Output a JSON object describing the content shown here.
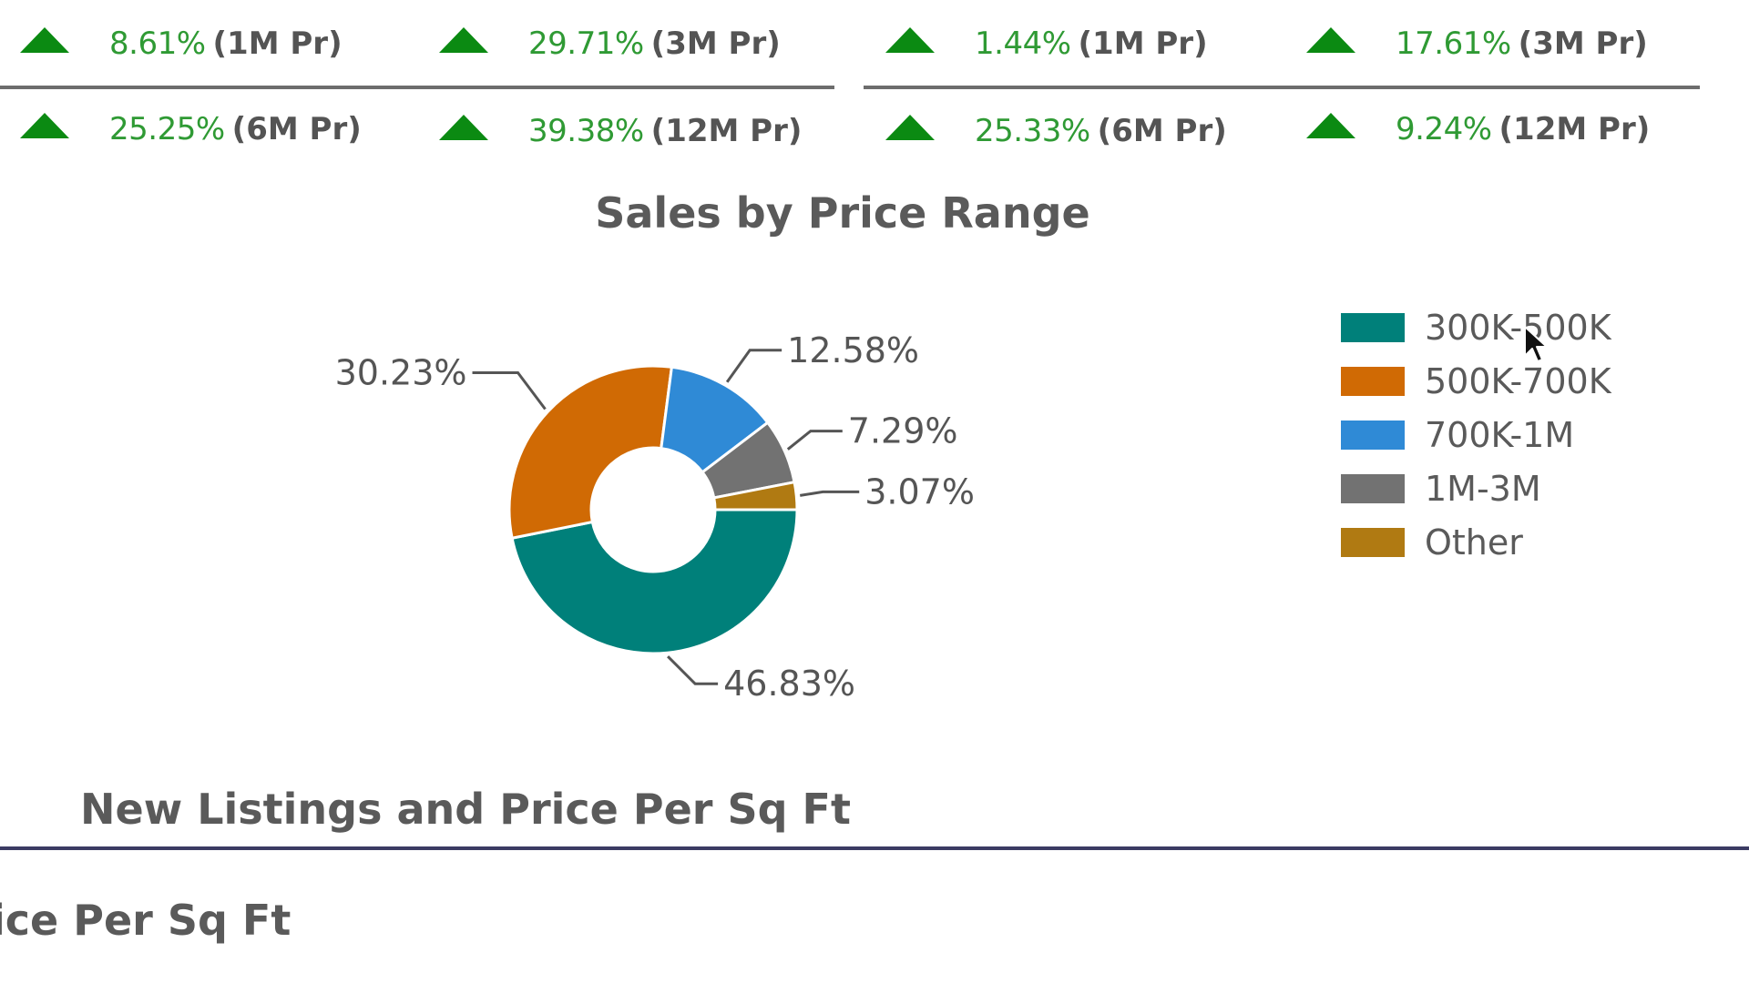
{
  "kpis": {
    "left": {
      "row1": [
        {
          "pct": "8.61%",
          "period": "(1M Pr)"
        },
        {
          "pct": "29.71%",
          "period": "(3M Pr)"
        }
      ],
      "row2": [
        {
          "pct": "25.25%",
          "period": "(6M Pr)"
        },
        {
          "pct": "39.38%",
          "period": "(12M Pr)"
        }
      ]
    },
    "right": {
      "row1": [
        {
          "pct": "1.44%",
          "period": "(1M Pr)"
        },
        {
          "pct": "17.61%",
          "period": "(3M Pr)"
        }
      ],
      "row2": [
        {
          "pct": "25.33%",
          "period": "(6M Pr)"
        },
        {
          "pct": "9.24%",
          "period": "(12M Pr)"
        }
      ]
    },
    "trend": "up",
    "arrow_icon": "triangle-up-icon",
    "arrow_color": "#0b8a12",
    "pct_color": "#2f9a34"
  },
  "chart_data": {
    "type": "pie",
    "title": "Sales by Price Range",
    "donut": true,
    "legend_position": "right",
    "categories": [
      "300K-500K",
      "500K-700K",
      "700K-1M",
      "1M-3M",
      "Other"
    ],
    "values": [
      46.83,
      30.23,
      12.58,
      7.29,
      3.07
    ],
    "labels": [
      "46.83%",
      "30.23%",
      "12.58%",
      "7.29%",
      "3.07%"
    ],
    "colors": [
      "#00807a",
      "#d06a04",
      "#2f8ad6",
      "#727272",
      "#b07a12"
    ]
  },
  "sections": {
    "new_listings_title": "New Listings and Price Per Sq Ft",
    "truncated_title": "ice Per Sq Ft"
  },
  "cursor_icon": "mouse-pointer-icon"
}
